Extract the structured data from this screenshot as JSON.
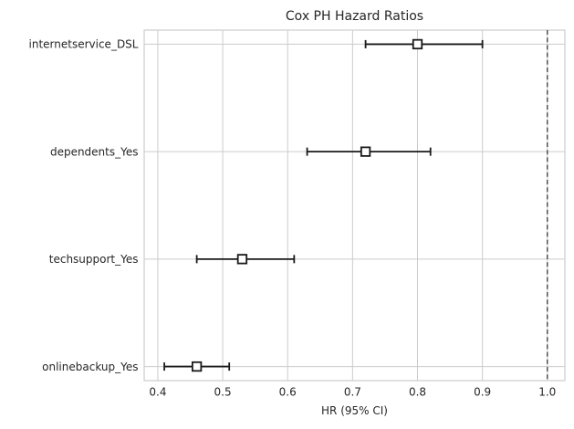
{
  "chart_data": {
    "type": "scatter",
    "subtype": "forest-plot-error-bars",
    "title": "Cox PH Hazard Ratios",
    "xlabel": "HR (95% CI)",
    "ylabel": "",
    "categories": [
      "internetservice_DSL",
      "dependents_Yes",
      "techsupport_Yes",
      "onlinebackup_Yes"
    ],
    "rows": [
      {
        "label": "internetservice_DSL",
        "hr": 0.8,
        "ci_low": 0.72,
        "ci_high": 0.9
      },
      {
        "label": "dependents_Yes",
        "hr": 0.72,
        "ci_low": 0.63,
        "ci_high": 0.82
      },
      {
        "label": "techsupport_Yes",
        "hr": 0.53,
        "ci_low": 0.46,
        "ci_high": 0.61
      },
      {
        "label": "onlinebackup_Yes",
        "hr": 0.46,
        "ci_low": 0.41,
        "ci_high": 0.51
      }
    ],
    "series": [
      {
        "name": "HR",
        "values": [
          0.8,
          0.72,
          0.53,
          0.46
        ]
      },
      {
        "name": "CI lower",
        "values": [
          0.72,
          0.63,
          0.46,
          0.41
        ]
      },
      {
        "name": "CI upper",
        "values": [
          0.9,
          0.82,
          0.61,
          0.51
        ]
      }
    ],
    "x_ticks": [
      0.4,
      0.5,
      0.6,
      0.7,
      0.8,
      0.9,
      1.0
    ],
    "xlim": [
      0.379,
      1.027
    ],
    "ylim": [
      -0.131,
      3.131
    ],
    "reference_line_x": 1.0,
    "grid": true,
    "legend_position": "none",
    "marker": "open-square",
    "colors": {
      "error_bar": "#1a1a1a",
      "marker_fill": "#ffffff",
      "marker_edge": "#1a1a1a",
      "grid": "#cccccc",
      "spine": "#cccccc",
      "reference_line": "#3a3a3a",
      "text": "#262626",
      "background": "#ffffff"
    }
  }
}
